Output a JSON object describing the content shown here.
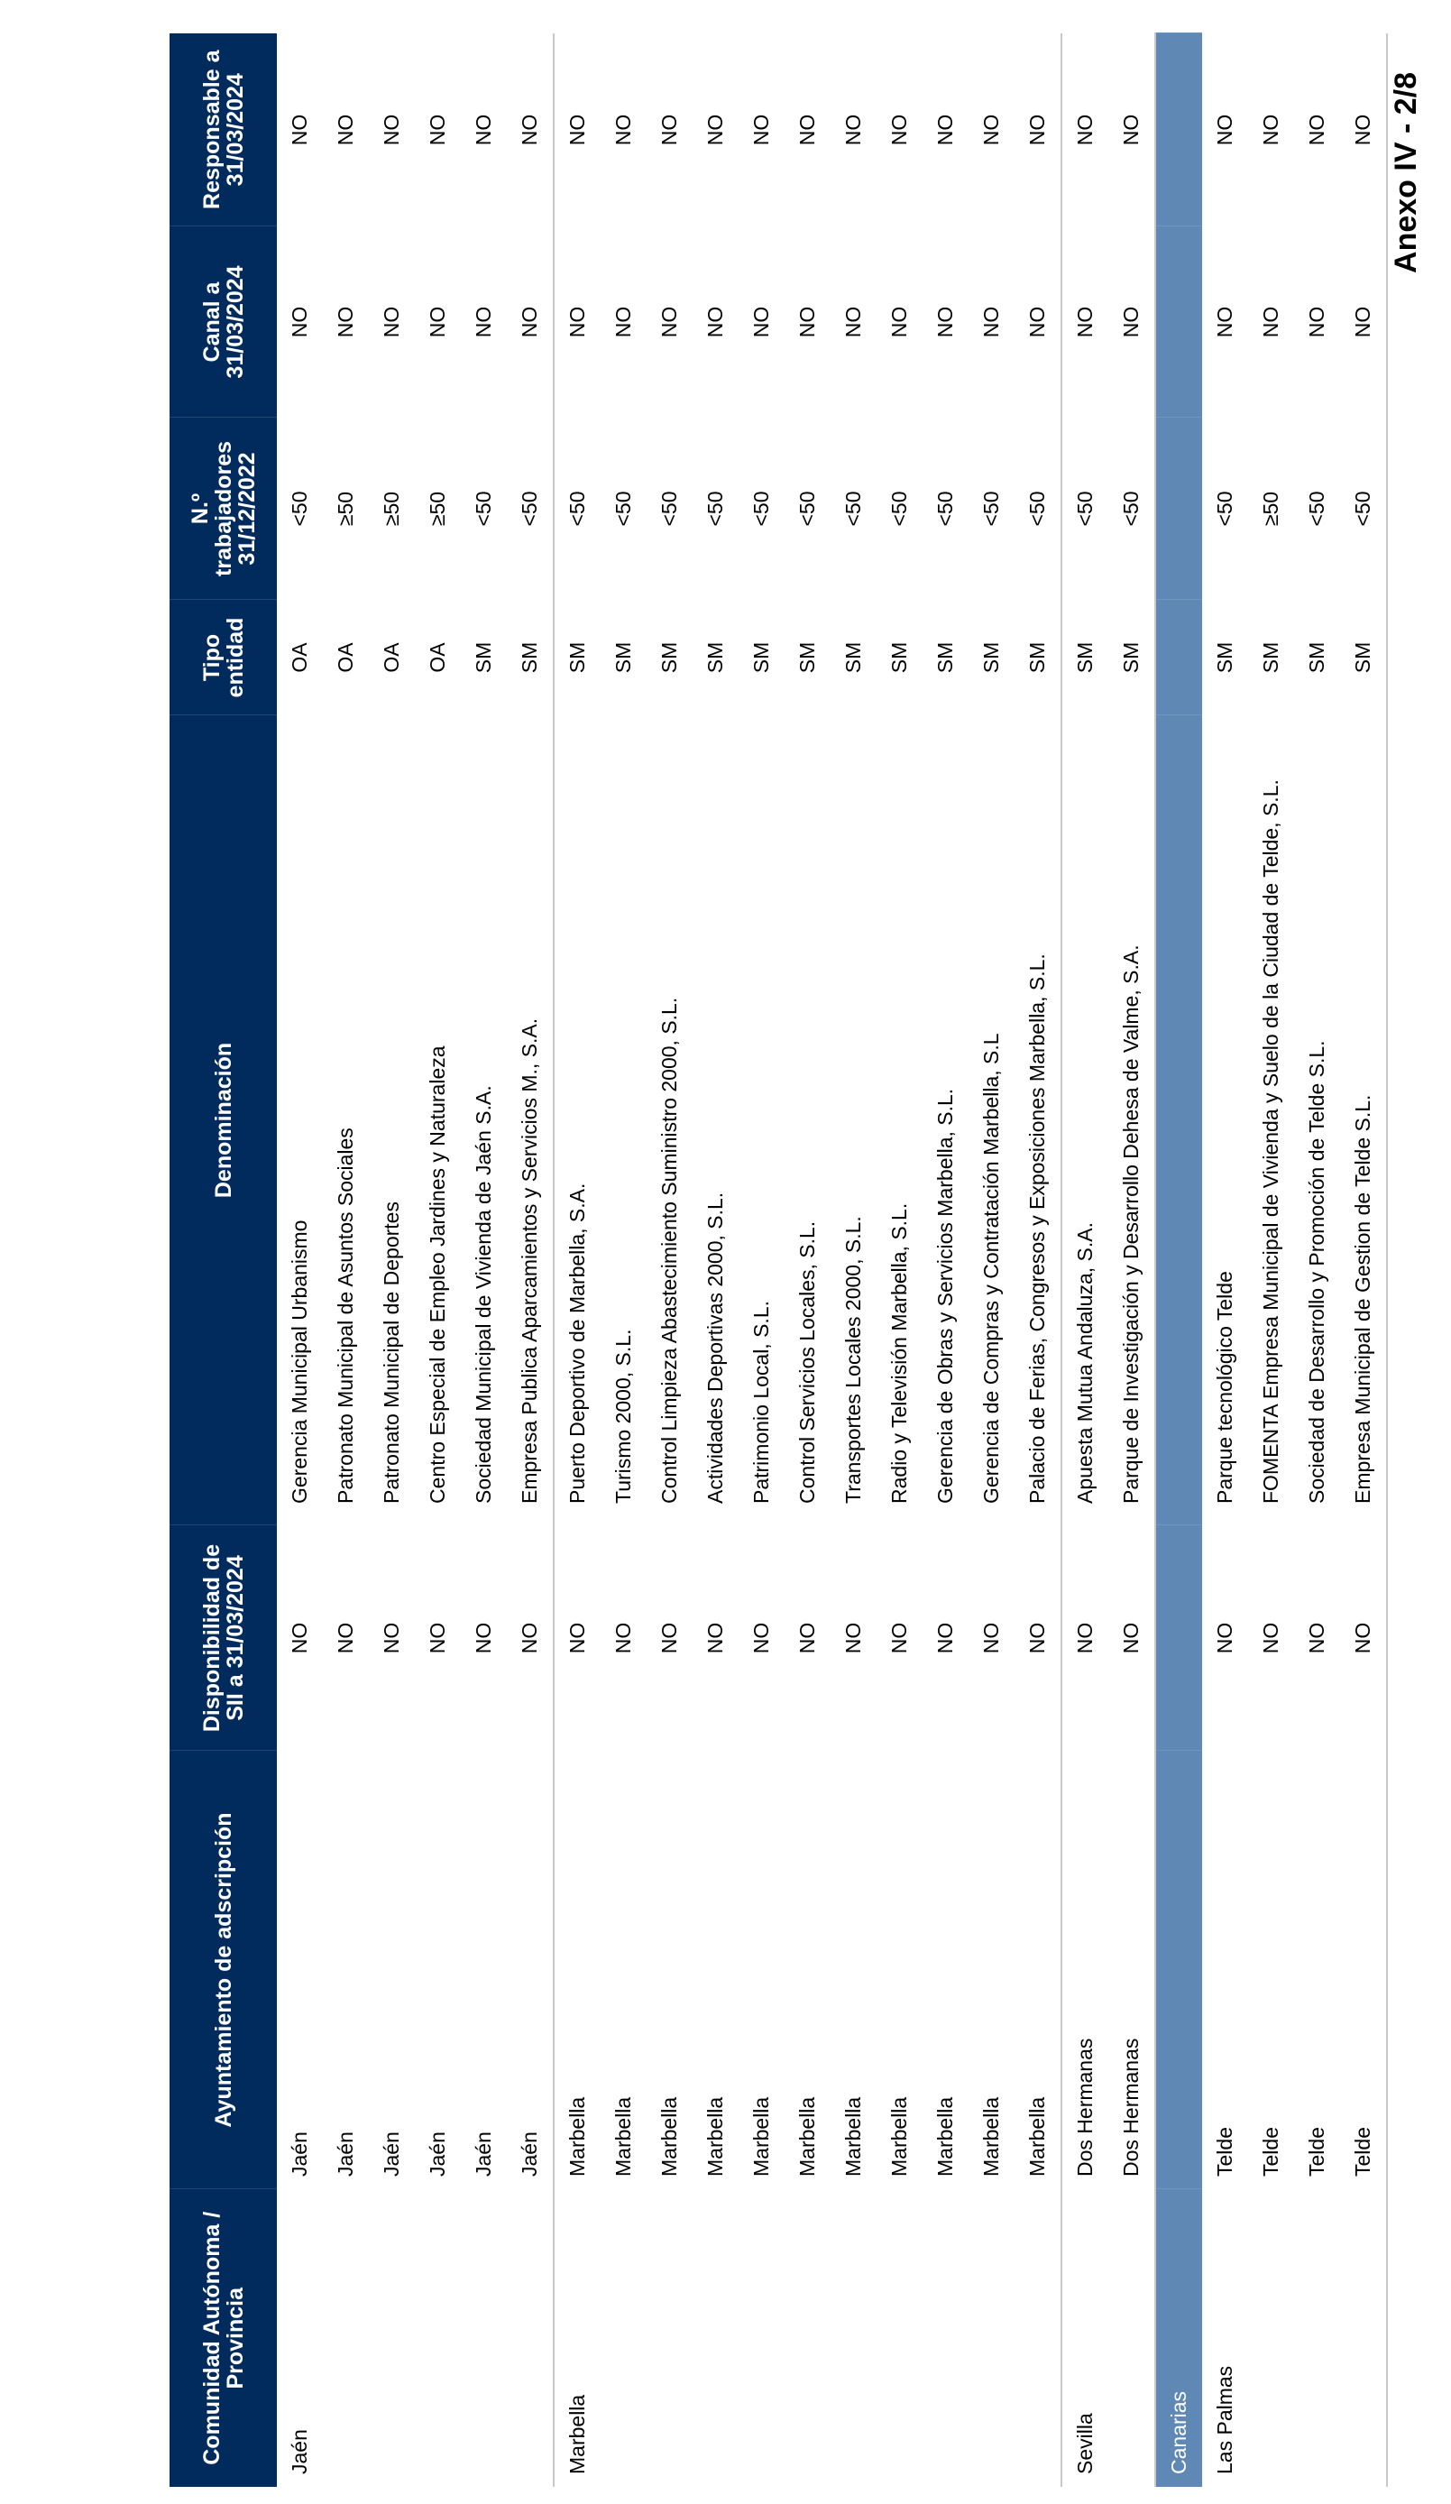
{
  "title": "Anexo IV - 2/8",
  "colors": {
    "header_bg": "#002b5c",
    "band_bg": "#5f89b4",
    "separator": "#c8c8c8"
  },
  "columns": [
    "Comunidad Autónoma / Provincia",
    "Ayuntamiento de adscripción",
    "Disponibilidad de SII a 31/03/2024",
    "Denominación",
    "Tipo entidad",
    "N.º trabajadores 31/12/2022",
    "Canal a 31/03/2024",
    "Responsable a 31/03/2024"
  ],
  "rows": [
    {
      "group": "Jaén",
      "ayto": "Jaén",
      "sii": "NO",
      "denominacion": "Gerencia Municipal Urbanismo",
      "tipo": "OA",
      "trabajadores": "<50",
      "canal": "NO",
      "responsable": "NO"
    },
    {
      "group": "",
      "ayto": "Jaén",
      "sii": "NO",
      "denominacion": "Patronato Municipal de Asuntos Sociales",
      "tipo": "OA",
      "trabajadores": "≥50",
      "canal": "NO",
      "responsable": "NO"
    },
    {
      "group": "",
      "ayto": "Jaén",
      "sii": "NO",
      "denominacion": "Patronato Municipal de Deportes",
      "tipo": "OA",
      "trabajadores": "≥50",
      "canal": "NO",
      "responsable": "NO"
    },
    {
      "group": "",
      "ayto": "Jaén",
      "sii": "NO",
      "denominacion": "Centro Especial de Empleo Jardines y Naturaleza",
      "tipo": "OA",
      "trabajadores": "≥50",
      "canal": "NO",
      "responsable": "NO"
    },
    {
      "group": "",
      "ayto": "Jaén",
      "sii": "NO",
      "denominacion": "Sociedad Municipal de Vivienda de Jaén S.A.",
      "tipo": "SM",
      "trabajadores": "<50",
      "canal": "NO",
      "responsable": "NO"
    },
    {
      "group": "",
      "ayto": "Jaén",
      "sii": "NO",
      "denominacion": "Empresa Publica Aparcamientos y Servicios M., S.A.",
      "tipo": "SM",
      "trabajadores": "<50",
      "canal": "NO",
      "responsable": "NO"
    },
    {
      "group": "Marbella",
      "sep": true,
      "ayto": "Marbella",
      "sii": "NO",
      "denominacion": "Puerto Deportivo de Marbella, S.A.",
      "tipo": "SM",
      "trabajadores": "<50",
      "canal": "NO",
      "responsable": "NO"
    },
    {
      "group": "",
      "ayto": "Marbella",
      "sii": "NO",
      "denominacion": "Turismo 2000, S.L.",
      "tipo": "SM",
      "trabajadores": "<50",
      "canal": "NO",
      "responsable": "NO"
    },
    {
      "group": "",
      "ayto": "Marbella",
      "sii": "NO",
      "denominacion": "Control Limpieza Abastecimiento Suministro 2000, S.L.",
      "tipo": "SM",
      "trabajadores": "<50",
      "canal": "NO",
      "responsable": "NO"
    },
    {
      "group": "",
      "ayto": "Marbella",
      "sii": "NO",
      "denominacion": "Actividades Deportivas 2000, S.L.",
      "tipo": "SM",
      "trabajadores": "<50",
      "canal": "NO",
      "responsable": "NO"
    },
    {
      "group": "",
      "ayto": "Marbella",
      "sii": "NO",
      "denominacion": "Patrimonio Local, S.L.",
      "tipo": "SM",
      "trabajadores": "<50",
      "canal": "NO",
      "responsable": "NO"
    },
    {
      "group": "",
      "ayto": "Marbella",
      "sii": "NO",
      "denominacion": "Control Servicios Locales, S.L.",
      "tipo": "SM",
      "trabajadores": "<50",
      "canal": "NO",
      "responsable": "NO"
    },
    {
      "group": "",
      "ayto": "Marbella",
      "sii": "NO",
      "denominacion": "Transportes Locales 2000, S.L.",
      "tipo": "SM",
      "trabajadores": "<50",
      "canal": "NO",
      "responsable": "NO"
    },
    {
      "group": "",
      "ayto": "Marbella",
      "sii": "NO",
      "denominacion": "Radio y Televisión Marbella, S.L.",
      "tipo": "SM",
      "trabajadores": "<50",
      "canal": "NO",
      "responsable": "NO"
    },
    {
      "group": "",
      "ayto": "Marbella",
      "sii": "NO",
      "denominacion": "Gerencia de Obras y Servicios Marbella, S.L.",
      "tipo": "SM",
      "trabajadores": "<50",
      "canal": "NO",
      "responsable": "NO"
    },
    {
      "group": "",
      "ayto": "Marbella",
      "sii": "NO",
      "denominacion": "Gerencia de Compras y Contratación Marbella, S.L",
      "tipo": "SM",
      "trabajadores": "<50",
      "canal": "NO",
      "responsable": "NO"
    },
    {
      "group": "",
      "ayto": "Marbella",
      "sii": "NO",
      "denominacion": "Palacio de Ferias, Congresos y Exposiciones Marbella, S.L.",
      "tipo": "SM",
      "trabajadores": "<50",
      "canal": "NO",
      "responsable": "NO"
    },
    {
      "group": "Sevilla",
      "sep": true,
      "ayto": "Dos Hermanas",
      "sii": "NO",
      "denominacion": "Apuesta Mutua Andaluza, S.A.",
      "tipo": "SM",
      "trabajadores": "<50",
      "canal": "NO",
      "responsable": "NO"
    },
    {
      "group": "",
      "ayto": "Dos Hermanas",
      "sii": "NO",
      "denominacion": "Parque de Investigación y Desarrollo Dehesa de Valme, S.A.",
      "tipo": "SM",
      "trabajadores": "<50",
      "canal": "NO",
      "responsable": "NO"
    },
    {
      "band": "Canarias"
    },
    {
      "group": "Las Palmas",
      "ayto": "Telde",
      "sii": "NO",
      "denominacion": "Parque tecnológico Telde",
      "tipo": "SM",
      "trabajadores": "<50",
      "canal": "NO",
      "responsable": "NO"
    },
    {
      "group": "",
      "ayto": "Telde",
      "sii": "NO",
      "denominacion": "FOMENTA Empresa Municipal de Vivienda y Suelo de la Ciudad de Telde, S.L.",
      "tipo": "SM",
      "trabajadores": "≥50",
      "canal": "NO",
      "responsable": "NO"
    },
    {
      "group": "",
      "ayto": "Telde",
      "sii": "NO",
      "denominacion": "Sociedad de Desarrollo y Promoción de Telde S.L.",
      "tipo": "SM",
      "trabajadores": "<50",
      "canal": "NO",
      "responsable": "NO"
    },
    {
      "group": "",
      "ayto": "Telde",
      "sii": "NO",
      "denominacion": "Empresa Municipal de Gestion de Telde S.L.",
      "tipo": "SM",
      "trabajadores": "<50",
      "canal": "NO",
      "responsable": "NO"
    }
  ]
}
